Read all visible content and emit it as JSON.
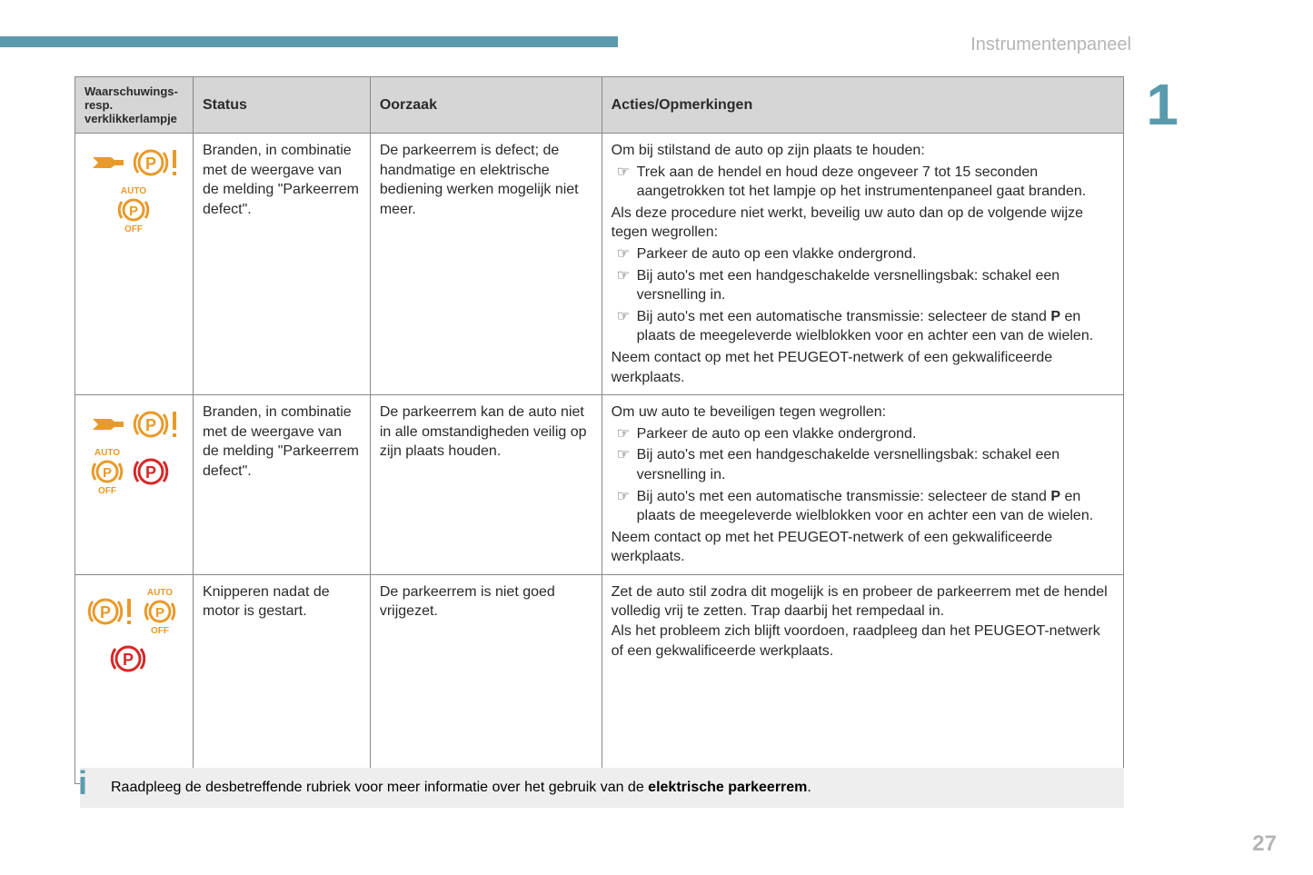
{
  "section_title": "Instrumentenpaneel",
  "chapter_number": "1",
  "page_number": "27",
  "colors": {
    "accent": "#5a9aad",
    "amber": "#e89a2a",
    "red": "#d62828",
    "grey_bg": "#d6d6d6",
    "info_bg": "#eeeeee"
  },
  "table": {
    "headers": {
      "col1": "Waarschuwings- resp. verklikkerlampje",
      "col2": "Status",
      "col3": "Oorzaak",
      "col4": "Acties/Opmerkingen"
    },
    "rows": [
      {
        "icons": [
          "wrench-amber",
          "p-excl-amber",
          "auto-p-off-amber"
        ],
        "status": "Branden, in combinatie met de weergave van de melding \"Parkeerrem defect\".",
        "cause": "De parkeerrem is defect; de handmatige en elektrische bediening werken mogelijk niet meer.",
        "actions_intro": "Om bij stilstand de auto op zijn plaats te houden:",
        "actions_bullets_a": [
          "Trek aan de hendel en houd deze ongeveer 7 tot 15 seconden aangetrokken tot het lampje op het instrumentenpaneel gaat branden."
        ],
        "actions_mid": "Als deze procedure niet werkt, beveilig uw auto dan op de volgende wijze tegen wegrollen:",
        "actions_bullets_b": [
          "Parkeer de auto op een vlakke ondergrond.",
          "Bij auto's met een handgeschakelde versnellingsbak: schakel een versnelling in.",
          "Bij auto's met een automatische transmissie: selecteer de stand <b>P</b> en plaats de meegeleverde wielblokken voor en achter een van de wielen."
        ],
        "actions_outro": "Neem contact op met het PEUGEOT-netwerk of een gekwalificeerde werkplaats."
      },
      {
        "icons": [
          "wrench-amber",
          "p-excl-amber",
          "auto-p-off-amber",
          "p-red"
        ],
        "status": "Branden, in combinatie met de weergave van de melding \"Parkeerrem defect\".",
        "cause": "De parkeerrem kan de auto niet in alle omstandigheden veilig op zijn plaats houden.",
        "actions_intro": "Om uw auto te beveiligen tegen wegrollen:",
        "actions_bullets_a": [
          "Parkeer de auto op een vlakke ondergrond.",
          "Bij auto's met een handgeschakelde versnellingsbak: schakel een versnelling in.",
          "Bij auto's met een automatische transmissie: selecteer de stand <b>P</b> en plaats de meegeleverde wielblokken voor en achter een van de wielen."
        ],
        "actions_outro": "Neem contact op met het PEUGEOT-netwerk of een gekwalificeerde werkplaats."
      },
      {
        "icons": [
          "p-excl-amber",
          "auto-p-off-amber",
          "p-red"
        ],
        "status": "Knipperen nadat de motor is gestart.",
        "cause": "De parkeerrem is niet goed vrijgezet.",
        "actions_para1": "Zet de auto stil zodra dit mogelijk is en probeer de parkeerrem met de hendel volledig vrij te zetten. Trap daarbij het rempedaal in.",
        "actions_para2": "Als het probleem zich blijft voordoen, raadpleeg dan het PEUGEOT-netwerk of een gekwalificeerde werkplaats."
      }
    ]
  },
  "info_note": "Raadpleeg de desbetreffende rubriek voor meer informatie over het gebruik van de <b>elektrische parkeerrem</b>."
}
